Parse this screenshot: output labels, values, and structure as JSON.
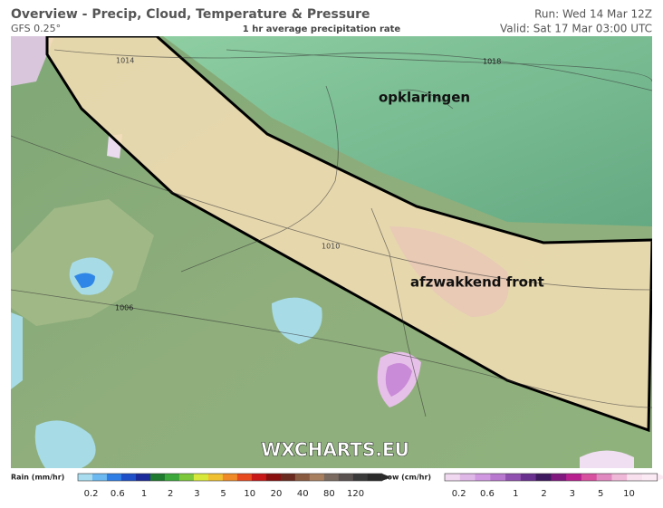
{
  "header": {
    "title": "Overview - Precip, Cloud, Temperature & Pressure",
    "model": "GFS 0.25°",
    "subtitle": "1 hr average precipitation rate",
    "run": "Run: Wed 14 Mar 12Z",
    "valid": "Valid: Sat 17 Mar 03:00 UTC"
  },
  "map": {
    "annotations": [
      "opklaringen",
      "afzwakkend front"
    ],
    "isobars": [
      "1014",
      "1018",
      "1010",
      "1006"
    ],
    "watermark": "WXCHARTS.EU"
  },
  "legend": {
    "rain": {
      "label": "Rain (mm/hr)",
      "ticks": [
        "0.2",
        "0.6",
        "1",
        "2",
        "3",
        "5",
        "10",
        "20",
        "40",
        "80",
        "120"
      ]
    },
    "snow": {
      "label": "Snow (cm/hr)",
      "ticks": [
        "0.2",
        "0.6",
        "1",
        "2",
        "3",
        "5",
        "10"
      ]
    }
  }
}
